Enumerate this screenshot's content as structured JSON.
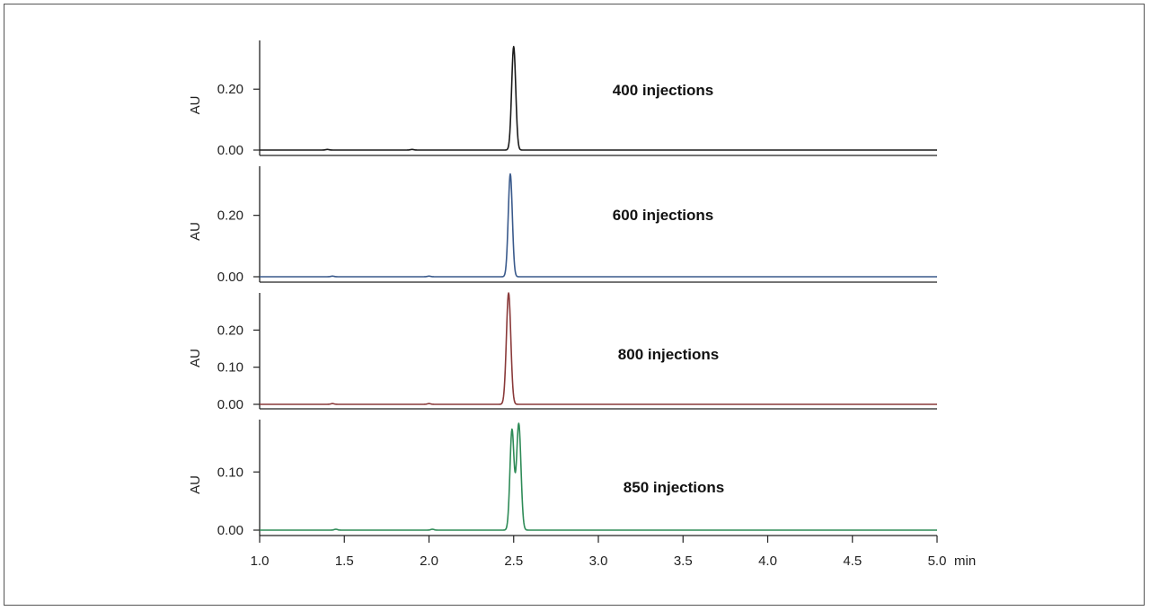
{
  "chart_data": {
    "type": "line",
    "x_unit": "min",
    "x_range": [
      1.0,
      5.0
    ],
    "x_ticks": [
      "1.0",
      "1.5",
      "2.0",
      "2.5",
      "3.0",
      "3.5",
      "4.0",
      "4.5",
      "5.0"
    ],
    "grid": false,
    "panels": [
      {
        "annotation": "400 injections",
        "ylabel": "AU",
        "color": "#1a1a1a",
        "ylim": [
          -0.015,
          0.36
        ],
        "y_ticks": [
          0.0,
          0.2
        ],
        "y_tick_labels": [
          "0.00",
          "0.20"
        ],
        "baseline_blips": [
          [
            1.4,
            0.002
          ],
          [
            1.9,
            0.002
          ]
        ],
        "peaks": [
          {
            "rt": 2.5,
            "height": 0.34,
            "width": 0.012
          }
        ]
      },
      {
        "annotation": "600 injections",
        "ylabel": "AU",
        "color": "#3a5a8c",
        "ylim": [
          -0.015,
          0.36
        ],
        "y_ticks": [
          0.0,
          0.2
        ],
        "y_tick_labels": [
          "0.00",
          "0.20"
        ],
        "baseline_blips": [
          [
            1.43,
            0.002
          ],
          [
            2.0,
            0.002
          ]
        ],
        "peaks": [
          {
            "rt": 2.48,
            "height": 0.335,
            "width": 0.012
          }
        ]
      },
      {
        "annotation": "800 injections",
        "ylabel": "AU",
        "color": "#8a3a3a",
        "ylim": [
          -0.015,
          0.3
        ],
        "y_ticks": [
          0.0,
          0.1,
          0.2
        ],
        "y_tick_labels": [
          "0.00",
          "0.10",
          "0.20"
        ],
        "baseline_blips": [
          [
            1.43,
            0.002
          ],
          [
            2.0,
            0.002
          ]
        ],
        "peaks": [
          {
            "rt": 2.47,
            "height": 0.3,
            "width": 0.013
          }
        ]
      },
      {
        "annotation": "850 injections",
        "ylabel": "AU",
        "color": "#2e8b57",
        "ylim": [
          -0.008,
          0.19
        ],
        "y_ticks": [
          0.0,
          0.1
        ],
        "y_tick_labels": [
          "0.00",
          "0.10"
        ],
        "baseline_blips": [
          [
            1.45,
            0.0015
          ],
          [
            2.02,
            0.0015
          ]
        ],
        "peaks": [
          {
            "rt": 2.49,
            "height": 0.172,
            "width": 0.012
          },
          {
            "rt": 2.53,
            "height": 0.183,
            "width": 0.013
          }
        ]
      }
    ]
  }
}
